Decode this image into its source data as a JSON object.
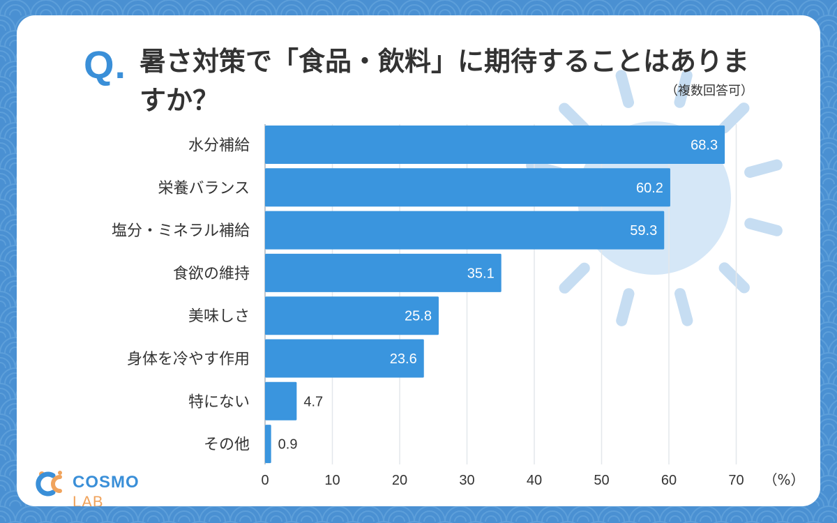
{
  "header": {
    "q_mark": "Q.",
    "title": "暑さ対策で「食品・飲料」に期待することはありますか？",
    "note": "（複数回答可）"
  },
  "logo": {
    "brand": "COSMO",
    "suffix": "LAB",
    "icon": "cosmo-lab-logo-icon"
  },
  "colors": {
    "background": "#4a90d2",
    "bar": "#3a95de",
    "accent": "#3a8fd8"
  },
  "chart_data": {
    "type": "bar",
    "orientation": "horizontal",
    "categories": [
      "水分補給",
      "栄養バランス",
      "塩分・ミネラル補給",
      "食欲の維持",
      "美味しさ",
      "身体を冷やす作用",
      "特にない",
      "その他"
    ],
    "values": [
      68.3,
      60.2,
      59.3,
      35.1,
      25.8,
      23.6,
      4.7,
      0.9
    ],
    "value_labels": [
      "68.3",
      "60.2",
      "59.3",
      "35.1",
      "25.8",
      "23.6",
      "4.7",
      "0.9"
    ],
    "x_ticks": [
      "0",
      "10",
      "20",
      "30",
      "40",
      "50",
      "60",
      "70"
    ],
    "xlim": [
      0,
      70
    ],
    "unit": "（%）",
    "grid": true
  }
}
